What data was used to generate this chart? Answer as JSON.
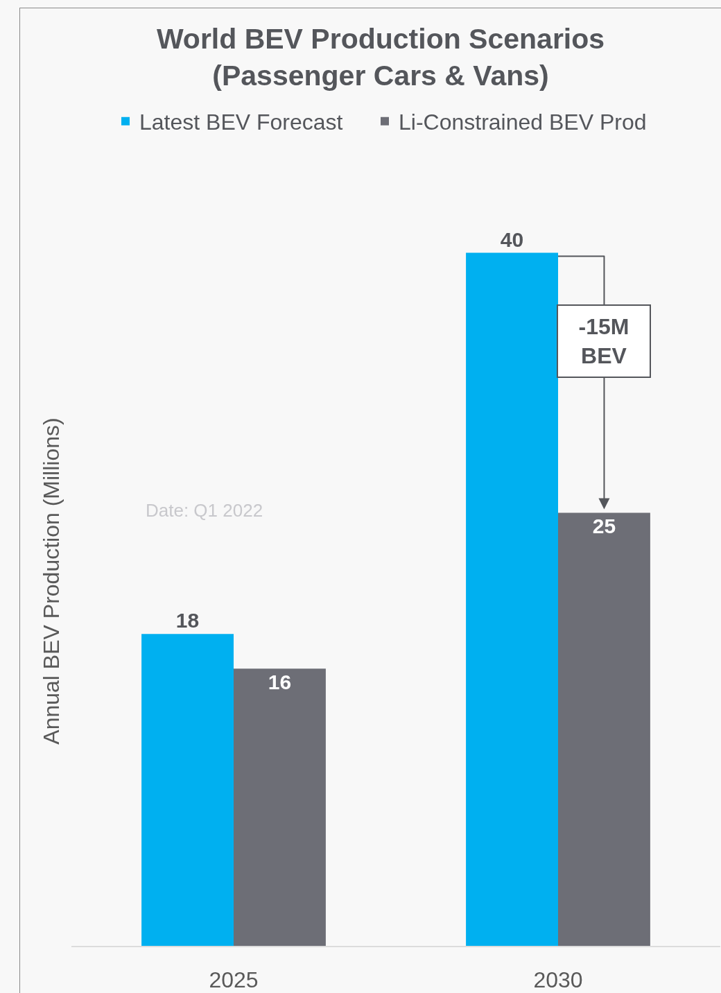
{
  "chart_data": {
    "type": "bar",
    "title": "World BEV Production Scenarios\n(Passenger Cars & Vans)",
    "ylabel": "Annual BEV Production (Millions)",
    "categories": [
      "2025",
      "2030"
    ],
    "series": [
      {
        "name": "Latest BEV Forecast",
        "color": "#00b0f0",
        "values": [
          18,
          40
        ]
      },
      {
        "name": "Li-Constrained BEV Prod",
        "color": "#6d6e76",
        "values": [
          16,
          25
        ]
      }
    ],
    "data_labels": true,
    "legend": "top",
    "tick_labels": "x",
    "annotations": [
      {
        "text": "-15M\nBEV",
        "x": "2030"
      },
      "Date: Q1 2022"
    ]
  }
}
